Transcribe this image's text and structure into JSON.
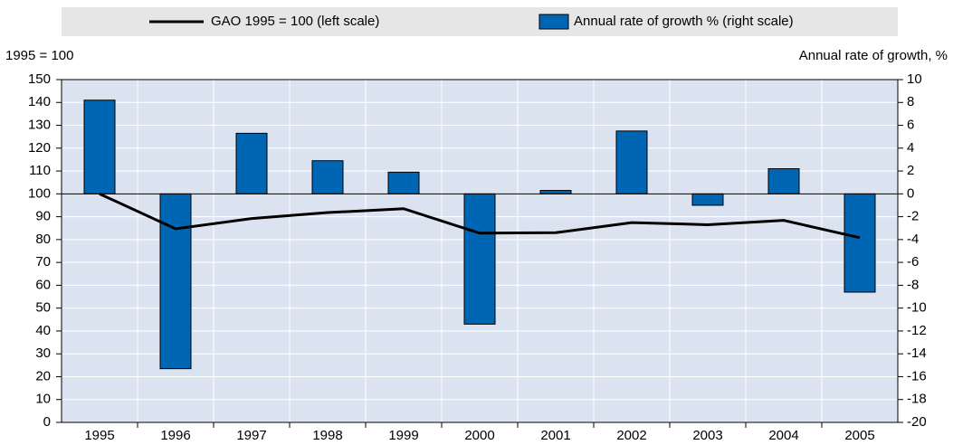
{
  "chart_data": {
    "type": "bar_line",
    "categories": [
      "1995",
      "1996",
      "1997",
      "1998",
      "1999",
      "2000",
      "2001",
      "2002",
      "2003",
      "2004",
      "2005"
    ],
    "series": [
      {
        "name": "GAO 1995 = 100 (left scale)",
        "type": "line",
        "axis": "y",
        "color": "#000000",
        "values": [
          100,
          84.7,
          89.2,
          91.8,
          93.5,
          82.8,
          83.0,
          87.4,
          86.5,
          88.4,
          80.8
        ]
      },
      {
        "name": "Annual rate of growth % (right scale)",
        "type": "bar",
        "axis": "y2",
        "color": "#0066b3",
        "values": [
          8.2,
          -15.3,
          5.3,
          2.9,
          1.9,
          -11.4,
          0.3,
          5.5,
          -1.0,
          2.2,
          -8.6
        ]
      }
    ],
    "ylabel": "1995 = 100",
    "y2label": "Annual rate of growth, %",
    "ylim": [
      0,
      150
    ],
    "yticks": [
      0,
      10,
      20,
      30,
      40,
      50,
      60,
      70,
      80,
      90,
      100,
      110,
      120,
      130,
      140,
      150
    ],
    "y2lim": [
      -20,
      10
    ],
    "y2ticks": [
      -20,
      -18,
      -16,
      -14,
      -12,
      -10,
      -8,
      -6,
      -4,
      -2,
      0,
      2,
      4,
      6,
      8,
      10
    ],
    "grid": true
  }
}
